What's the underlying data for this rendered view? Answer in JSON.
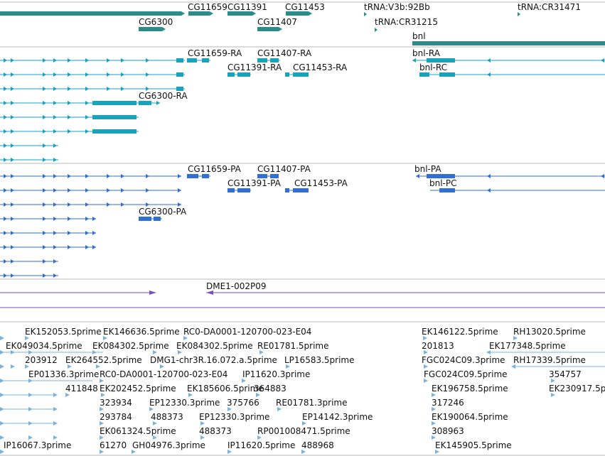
{
  "colors": {
    "gene": "#2b8c8a",
    "transcript": "#17a3bb",
    "protein": "#2f6fd6",
    "clone": "#7b4fc0",
    "est": "#7ab3e0",
    "divider": "#b8b8b8"
  },
  "tracks": {
    "genes": {
      "labels": [
        "CG11659",
        "CG11391",
        "CG11453",
        "tRNA:V3b:92Bb",
        "tRNA:CR31471",
        "CG6300",
        "CG11407",
        "tRNA:CR31215",
        "bnl"
      ]
    },
    "transcripts": {
      "labels": [
        "CG11659-RA",
        "CG11407-RA",
        "bnl-RA",
        "CG11391-RA",
        "CG11453-RA",
        "bnl-RC",
        "CG6300-RA"
      ]
    },
    "proteins": {
      "labels": [
        "CG11659-PA",
        "CG11407-PA",
        "bnl-PA",
        "CG11391-PA",
        "CG11453-PA",
        "bnl-PC",
        "CG6300-PA"
      ]
    },
    "clones": {
      "labels": [
        "DME1-002P09"
      ]
    },
    "ests": {
      "labels": [
        "EK152053.5prime",
        "EK146636.5prime",
        "RC0-DA0001-120700-023-E04",
        "EK146122.5prime",
        "RH13020.5prime",
        "EK049034.5prime",
        "EK084302.5prime",
        "EK084302.5prime",
        "RE01781.5prime",
        "201813",
        "EK177348.5prime",
        "203912",
        "EK264552.5prime",
        "DMG1-chr3R.16.072.a.5prime",
        "LP16583.5prime",
        "FGC024C09.3prime",
        "RH17339.5prime",
        "EP01336.3prime",
        "RC0-DA0001-120700-023-E04",
        "IP11620.3prime",
        "FGC024C09.5prime",
        "354757",
        "411848",
        "EK202452.5prime",
        "EK185606.5prime",
        "364883",
        "EK196758.5prime",
        "EK230917.5p",
        "323934",
        "EP12330.3prime",
        "375766",
        "RE01781.3prime",
        "317246",
        "293784",
        "488373",
        "EP12330.3prime",
        "EP14142.3prime",
        "EK190064.5prime",
        "EK061324.5prime",
        "488373",
        "RP001008471.5prime",
        "308963",
        "IP16067.3prime",
        "61270",
        "GH04976.3prime",
        "IP11620.5prime",
        "488968",
        "EK145905.5prime"
      ]
    }
  }
}
